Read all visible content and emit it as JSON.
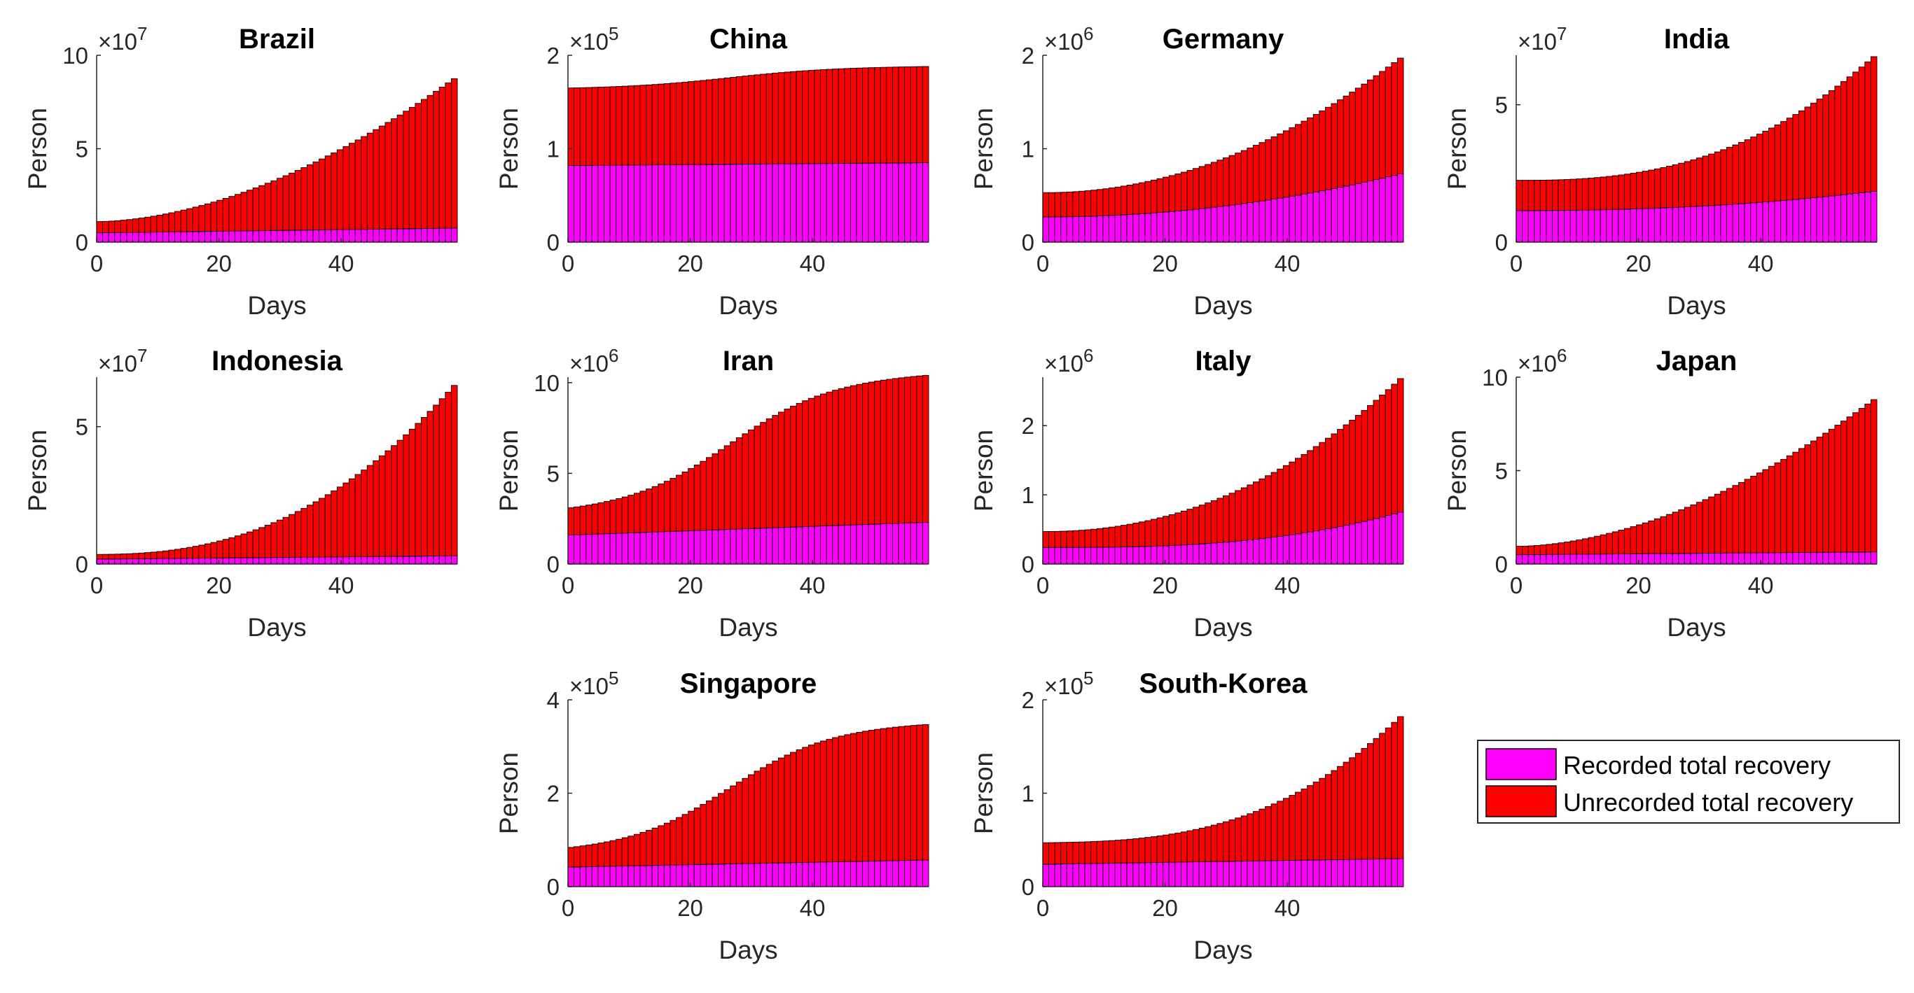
{
  "figure": {
    "legend": {
      "placement": "right of the bottom row",
      "entries": [
        {
          "label": "Recorded total recovery",
          "color": "#ff00ff"
        },
        {
          "label": "Unrecorded total recovery",
          "color": "#ff0000"
        }
      ]
    }
  },
  "chart_data": [
    {
      "type": "bar",
      "stacked": true,
      "title": "Brazil",
      "xlabel": "Days",
      "ylabel": "Person",
      "exponent_label": "×10^7",
      "scale": 10000000,
      "xlim": [
        0,
        59
      ],
      "ylim": [
        0,
        10
      ],
      "xticks": [
        0,
        20,
        40
      ],
      "yticks": [
        0,
        5,
        10
      ],
      "series": [
        {
          "name": "Recorded total recovery",
          "start": 0.5,
          "end": 0.75,
          "shape": 1
        },
        {
          "name": "Unrecorded total recovery",
          "start": 0.6,
          "end": 8.0,
          "shape": 1.8
        }
      ]
    },
    {
      "type": "bar",
      "stacked": true,
      "title": "China",
      "xlabel": "Days",
      "ylabel": "Person",
      "exponent_label": "×10^5",
      "scale": 100000,
      "xlim": [
        0,
        59
      ],
      "ylim": [
        0,
        2
      ],
      "xticks": [
        0,
        20,
        40
      ],
      "yticks": [
        0,
        1,
        2
      ],
      "series": [
        {
          "name": "Recorded total recovery",
          "start": 0.82,
          "end": 0.85,
          "shape": 1
        },
        {
          "name": "Unrecorded total recovery",
          "start": 0.83,
          "end": 1.03,
          "shape": "s"
        }
      ]
    },
    {
      "type": "bar",
      "stacked": true,
      "title": "Germany",
      "xlabel": "Days",
      "ylabel": "Person",
      "exponent_label": "×10^6",
      "scale": 1000000,
      "xlim": [
        0,
        59
      ],
      "ylim": [
        0,
        2
      ],
      "xticks": [
        0,
        20,
        40
      ],
      "yticks": [
        0,
        1,
        2
      ],
      "series": [
        {
          "name": "Recorded total recovery",
          "start": 0.27,
          "end": 0.73,
          "shape": 2
        },
        {
          "name": "Unrecorded total recovery",
          "start": 0.26,
          "end": 1.24,
          "shape": 2
        }
      ]
    },
    {
      "type": "bar",
      "stacked": true,
      "title": "India",
      "xlabel": "Days",
      "ylabel": "Person",
      "exponent_label": "×10^7",
      "scale": 10000000,
      "xlim": [
        0,
        59
      ],
      "ylim": [
        0,
        6.8
      ],
      "xticks": [
        0,
        20,
        40
      ],
      "yticks": [
        0,
        5
      ],
      "series": [
        {
          "name": "Recorded total recovery",
          "start": 1.15,
          "end": 1.85,
          "shape": 2.2
        },
        {
          "name": "Unrecorded total recovery",
          "start": 1.1,
          "end": 4.9,
          "shape": 2.6
        }
      ]
    },
    {
      "type": "bar",
      "stacked": true,
      "title": "Indonesia",
      "xlabel": "Days",
      "ylabel": "Person",
      "exponent_label": "×10^7",
      "scale": 10000000,
      "xlim": [
        0,
        59
      ],
      "ylim": [
        0,
        6.8
      ],
      "xticks": [
        0,
        20,
        40
      ],
      "yticks": [
        0,
        5
      ],
      "series": [
        {
          "name": "Recorded total recovery",
          "start": 0.18,
          "end": 0.3,
          "shape": 1
        },
        {
          "name": "Unrecorded total recovery",
          "start": 0.17,
          "end": 6.2,
          "shape": 2.4
        }
      ]
    },
    {
      "type": "bar",
      "stacked": true,
      "title": "Iran",
      "xlabel": "Days",
      "ylabel": "Person",
      "exponent_label": "×10^6",
      "scale": 1000000,
      "xlim": [
        0,
        59
      ],
      "ylim": [
        0,
        10.3
      ],
      "xticks": [
        0,
        20,
        40
      ],
      "yticks": [
        0,
        5,
        10
      ],
      "series": [
        {
          "name": "Recorded total recovery",
          "start": 1.6,
          "end": 2.3,
          "shape": 1
        },
        {
          "name": "Unrecorded total recovery",
          "start": 1.5,
          "end": 8.1,
          "shape": "s"
        }
      ]
    },
    {
      "type": "bar",
      "stacked": true,
      "title": "Italy",
      "xlabel": "Days",
      "ylabel": "Person",
      "exponent_label": "×10^6",
      "scale": 1000000,
      "xlim": [
        0,
        59
      ],
      "ylim": [
        0,
        2.7
      ],
      "xticks": [
        0,
        20,
        40
      ],
      "yticks": [
        0,
        1,
        2
      ],
      "series": [
        {
          "name": "Recorded total recovery",
          "start": 0.24,
          "end": 0.75,
          "shape": 2.8
        },
        {
          "name": "Unrecorded total recovery",
          "start": 0.23,
          "end": 1.93,
          "shape": 2
        }
      ]
    },
    {
      "type": "bar",
      "stacked": true,
      "title": "Japan",
      "xlabel": "Days",
      "ylabel": "Person",
      "exponent_label": "×10^6",
      "scale": 1000000,
      "xlim": [
        0,
        59
      ],
      "ylim": [
        0,
        10
      ],
      "xticks": [
        0,
        20,
        40
      ],
      "yticks": [
        0,
        5,
        10
      ],
      "series": [
        {
          "name": "Recorded total recovery",
          "start": 0.5,
          "end": 0.65,
          "shape": 1
        },
        {
          "name": "Unrecorded total recovery",
          "start": 0.45,
          "end": 8.15,
          "shape": 1.8
        }
      ]
    },
    {
      "type": "bar",
      "stacked": true,
      "title": "Singapore",
      "xlabel": "Days",
      "ylabel": "Person",
      "exponent_label": "×10^5",
      "scale": 100000,
      "xlim": [
        0,
        59
      ],
      "ylim": [
        0,
        4
      ],
      "xticks": [
        0,
        20,
        40
      ],
      "yticks": [
        0,
        2,
        4
      ],
      "series": [
        {
          "name": "Recorded total recovery",
          "start": 0.42,
          "end": 0.57,
          "shape": 1
        },
        {
          "name": "Unrecorded total recovery",
          "start": 0.42,
          "end": 2.9,
          "shape": "s"
        }
      ]
    },
    {
      "type": "bar",
      "stacked": true,
      "title": "South-Korea",
      "xlabel": "Days",
      "ylabel": "Person",
      "exponent_label": "×10^5",
      "scale": 100000,
      "xlim": [
        0,
        59
      ],
      "ylim": [
        0,
        2
      ],
      "xticks": [
        0,
        20,
        40
      ],
      "yticks": [
        0,
        1,
        2
      ],
      "series": [
        {
          "name": "Recorded total recovery",
          "start": 0.24,
          "end": 0.3,
          "shape": 1
        },
        {
          "name": "Unrecorded total recovery",
          "start": 0.23,
          "end": 1.52,
          "shape": 2.8
        }
      ]
    }
  ]
}
